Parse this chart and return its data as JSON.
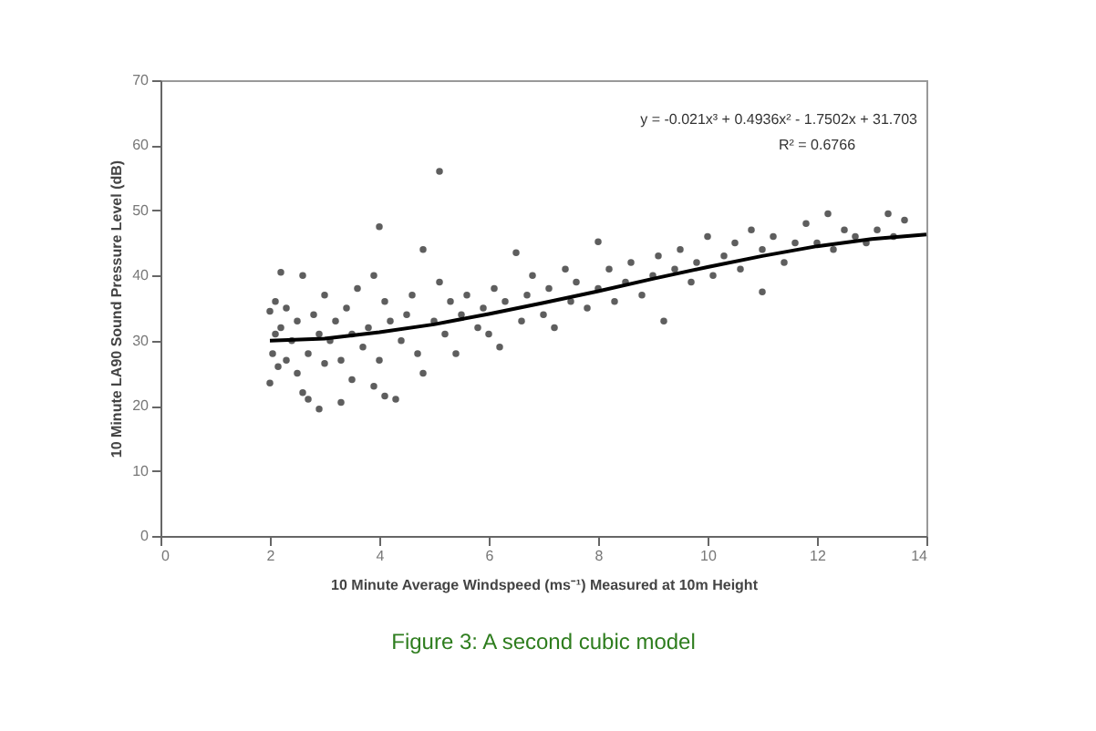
{
  "chart_data": {
    "type": "scatter",
    "xlabel": "10 Minute Average Windspeed (ms⁻¹) Measured at 10m Height",
    "ylabel": "10 Minute LA90 Sound Pressure Level (dB)",
    "xlim": [
      0,
      14
    ],
    "xticks": [
      0,
      2,
      4,
      6,
      8,
      10,
      12,
      14
    ],
    "ylim": [
      0,
      70
    ],
    "yticks": [
      0,
      10,
      20,
      30,
      40,
      50,
      60,
      70
    ],
    "grid": false,
    "marker": "circle",
    "annotations": [
      "y = -0.021x³ + 0.4936x² - 1.7502x + 31.703",
      "R² = 0.6766",
      "Figure 3:  A second cubic model"
    ],
    "series": [
      {
        "color": "#4d4d4d",
        "x": [
          2.0,
          2.0,
          2.05,
          2.1,
          2.1,
          2.15,
          2.2,
          2.2,
          2.3,
          2.3,
          2.4,
          2.5,
          2.5,
          2.6,
          2.6,
          2.7,
          2.7,
          2.8,
          2.9,
          2.9,
          3.0,
          3.0,
          3.1,
          3.2,
          3.3,
          3.3,
          3.4,
          3.5,
          3.5,
          3.6,
          3.7,
          3.8,
          3.9,
          3.9,
          4.0,
          4.0,
          4.1,
          4.1,
          4.2,
          4.3,
          4.4,
          4.5,
          4.6,
          4.7,
          4.8,
          4.8,
          5.0,
          5.1,
          5.1,
          5.2,
          5.3,
          5.4,
          5.5,
          5.6,
          5.8,
          5.9,
          6.0,
          6.1,
          6.2,
          6.3,
          6.5,
          6.6,
          6.7,
          6.8,
          7.0,
          7.1,
          7.2,
          7.4,
          7.5,
          7.6,
          7.8,
          8.0,
          8.0,
          8.2,
          8.3,
          8.5,
          8.6,
          8.8,
          9.0,
          9.1,
          9.2,
          9.4,
          9.5,
          9.7,
          9.8,
          10.0,
          10.1,
          10.3,
          10.5,
          10.6,
          10.8,
          11.0,
          11.0,
          11.2,
          11.4,
          11.6,
          11.8,
          12.0,
          12.2,
          12.3,
          12.5,
          12.7,
          12.9,
          13.1,
          13.3,
          13.4,
          13.6
        ],
        "values": [
          23.5,
          34.5,
          28,
          31,
          36,
          26,
          40.5,
          32,
          27,
          35,
          30,
          33,
          25,
          40,
          22,
          28,
          21,
          34,
          19.5,
          31,
          37,
          26.5,
          30,
          33,
          20.5,
          27,
          35,
          31,
          24,
          38,
          29,
          32,
          23,
          40,
          47.5,
          27,
          21.5,
          36,
          33,
          21,
          30,
          34,
          37,
          28,
          44,
          25,
          33,
          56,
          39,
          31,
          36,
          28,
          34,
          37,
          32,
          35,
          31,
          38,
          29,
          36,
          43.5,
          33,
          37,
          40,
          34,
          38,
          32,
          41,
          36,
          39,
          35,
          45.2,
          38,
          41,
          36,
          39,
          42,
          37,
          40,
          43,
          33,
          41,
          44,
          39,
          42,
          46,
          40,
          43,
          45,
          41,
          47,
          37.5,
          44,
          46,
          42,
          45,
          48,
          45,
          49.5,
          44,
          47,
          46,
          45,
          47,
          49.5,
          46,
          48.5
        ]
      },
      {
        "type": "line",
        "marker": "none",
        "color": "#000000",
        "x": [
          2,
          3,
          4,
          5,
          6,
          7,
          8,
          9,
          10,
          11,
          12,
          13,
          14
        ],
        "values": [
          30.0,
          30.3,
          31.3,
          32.5,
          34.1,
          35.8,
          37.6,
          39.5,
          41.3,
          43.0,
          44.5,
          45.6,
          46.3
        ]
      }
    ]
  }
}
